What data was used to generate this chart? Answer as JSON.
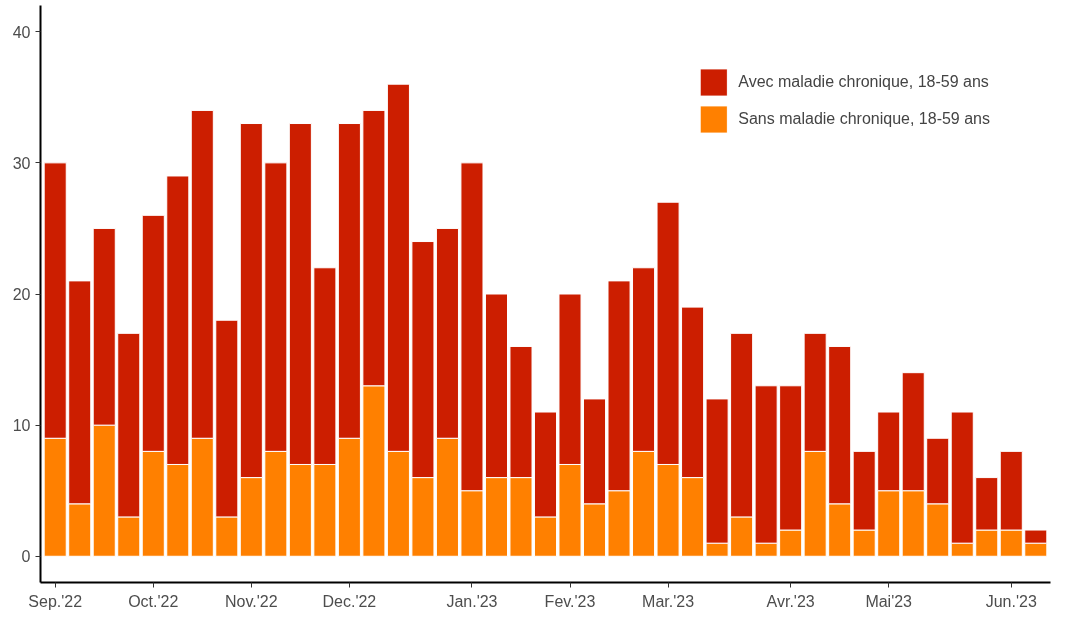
{
  "chart_data": {
    "type": "bar",
    "stacked": true,
    "categories": [
      "Sep.'22",
      null,
      null,
      null,
      "Oct.'22",
      null,
      null,
      null,
      "Nov.'22",
      null,
      null,
      null,
      "Dec.'22",
      null,
      null,
      null,
      null,
      "Jan.'23",
      null,
      null,
      null,
      "Fev.'23",
      null,
      null,
      null,
      "Mar.'23",
      null,
      null,
      null,
      null,
      "Avr.'23",
      null,
      null,
      null,
      "Mai'23",
      null,
      null,
      null,
      null,
      "Jun.'23",
      null
    ],
    "series": [
      {
        "name": "Sans maladie chronique, 18-59 ans",
        "color": "#ff8000",
        "values": [
          9,
          4,
          10,
          3,
          8,
          7,
          9,
          3,
          6,
          8,
          7,
          7,
          9,
          13,
          8,
          6,
          9,
          5,
          6,
          6,
          3,
          7,
          4,
          5,
          8,
          7,
          6,
          1,
          3,
          1,
          2,
          8,
          4,
          2,
          5,
          5,
          4,
          1,
          2,
          2,
          1
        ]
      },
      {
        "name": "Avec maladie chronique, 18-59 ans",
        "color": "#cc1e00",
        "values": [
          21,
          17,
          15,
          14,
          18,
          22,
          25,
          15,
          27,
          22,
          26,
          15,
          24,
          21,
          28,
          18,
          16,
          25,
          14,
          10,
          8,
          13,
          8,
          16,
          14,
          20,
          13,
          11,
          14,
          12,
          11,
          9,
          12,
          6,
          6,
          9,
          5,
          10,
          4,
          6,
          1
        ]
      }
    ],
    "ylim": [
      -2,
      42
    ],
    "yticks": [
      0,
      10,
      20,
      30,
      40
    ],
    "grid": false,
    "legend": "top right"
  }
}
